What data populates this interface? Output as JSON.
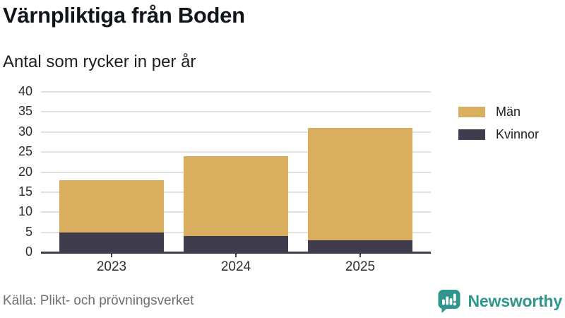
{
  "header": {
    "title": "Värnpliktiga från Boden",
    "subtitle": "Antal som rycker in per år"
  },
  "chart_data": {
    "type": "bar",
    "stacked": true,
    "title": "Värnpliktiga från Boden",
    "subtitle": "Antal som rycker in per år",
    "categories": [
      "2023",
      "2024",
      "2025"
    ],
    "series": [
      {
        "name": "Män",
        "color": "#d9ae5e",
        "values": [
          13,
          20,
          28
        ]
      },
      {
        "name": "Kvinnor",
        "color": "#3f3c4e",
        "values": [
          5,
          4,
          3
        ]
      }
    ],
    "stack_note": "Kvinnor segment at bottom, Män on top",
    "totals": [
      18,
      24,
      31
    ],
    "xlabel": "",
    "ylabel": "",
    "ylim": [
      0,
      40
    ],
    "yticks": [
      0,
      5,
      10,
      15,
      20,
      25,
      30,
      35,
      40
    ],
    "grid": true,
    "legend_position": "top-right"
  },
  "legend": {
    "items": [
      {
        "label": "Män",
        "color": "#d9ae5e"
      },
      {
        "label": "Kvinnor",
        "color": "#3f3c4e"
      }
    ]
  },
  "footer": {
    "source": "Källa: Plikt- och prövningsverket",
    "brand": "Newsworthy"
  },
  "colors": {
    "man_gold": "#d9ae5e",
    "kvinnor_dark": "#3f3c4e",
    "grid": "#e1e1e1",
    "axis": "#3f3c4e",
    "tick_text": "#2b2d33",
    "muted_text": "#6f6f6f",
    "brand_teal": "#2e968c",
    "background": "#ffffff"
  }
}
